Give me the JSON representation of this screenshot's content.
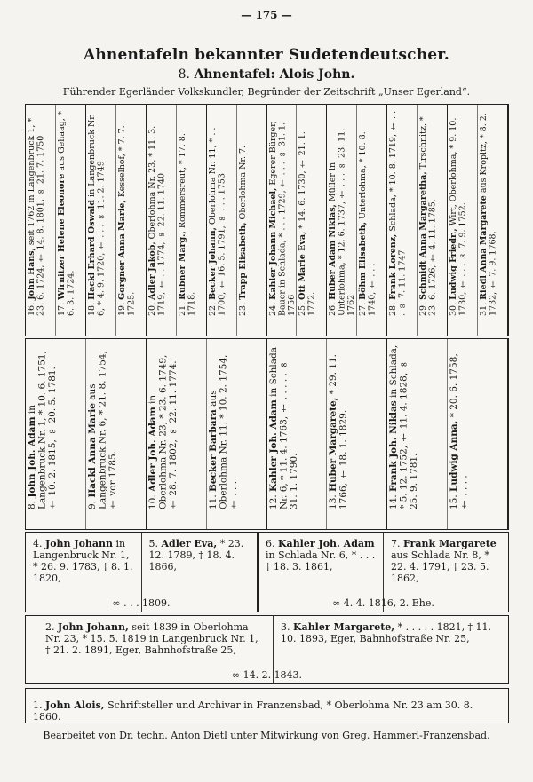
{
  "page_number": "— 175 —",
  "title": "Ahnentafeln bekannter Sudetendeutscher.",
  "subtitle": {
    "number": "8.",
    "label": "Ahnentafel: Alois John."
  },
  "description": "Führender Egerländer Volkskundler, Begründer der Zeitschrift „Unser Egerland“.",
  "generation_5": [
    {
      "num": "16.",
      "name": "John Hans,",
      "text": " seit 1762 in Langenbruck 1, * 23. 6. 1724, † 14. 8. 1801, ∞ 21. 7. 1750"
    },
    {
      "num": "17.",
      "name": "Wirnitzer Helene Eleonore",
      "text": " aus Gehaag, * 6. 3. 1724."
    },
    {
      "num": "18.",
      "name": "Hackl Erhard Oswald",
      "text": " in Langenbruck Nr. 6, * 4. 9. 1720, † . . . ∞ 11. 2. 1749"
    },
    {
      "num": "19.",
      "name": "Gorgner Anna Marie,",
      "text": " Kesselhof, * 7. 7. 1725."
    },
    {
      "num": "20.",
      "name": "Adler Jakob,",
      "text": " Oberlohma Nr. 23, * 11. 3. 1719, † . . 1774, ∞ 22. 11. 1740"
    },
    {
      "num": "21.",
      "name": "Rubner Marg.,",
      "text": " Rommersreut, * 17. 8. 1718."
    },
    {
      "num": "22.",
      "name": "Becker Johann,",
      "text": " Oberlohma Nr. 11, * . . 1700, † 16. 5. 1791, ∞ . . . 1753"
    },
    {
      "num": "23.",
      "name": "Trapp Elisabeth,",
      "text": " Oberlohma Nr. 7."
    },
    {
      "num": "24.",
      "name": "Kahler Johann Michael,",
      "text": " Egerer Bürger, Bauer in Schlada, * . . . 1729, † . . . ∞ 31. 1. 1756"
    },
    {
      "num": "25.",
      "name": "Ott Marie Eva,",
      "text": " * 14. 6. 1730, † 21. 1. 1772."
    },
    {
      "num": "26.",
      "name": "Huber Adam Niklas,",
      "text": " Müller in Unterlohma, * 12. 6. 1737, † . . . ∞ 23. 11. 1762"
    },
    {
      "num": "27.",
      "name": "Böhm Elisabeth,",
      "text": " Unterlohma, * 10. 8. 1740, † . . ."
    },
    {
      "num": "28.",
      "name": "Frank Lorenz,",
      "text": " Schlada, * 10. 8. 1719, † . . . ∞ 7. 11. 1747"
    },
    {
      "num": "29.",
      "name": "Schmidt Anna Margaretha,",
      "text": " Tirschnitz, * 23. 6. 1726, † 4. 11. 1785."
    },
    {
      "num": "30.",
      "name": "Ludwig Friedr.,",
      "text": " Wirt, Oberlohma, * 9. 10. 1730, † . . . ∞ 7. 9. 1752."
    },
    {
      "num": "31.",
      "name": "Riedl Anna Margarete",
      "text": " aus Kropitz, * 8. 2. 1732, † 7. 9. 1768."
    }
  ],
  "generation_4": [
    {
      "num": "8.",
      "name": "John Joh. Adam",
      "text": " in Langenbruck Nr. 1, * 10. 6. 1751, † 10. 2. 1815, ∞ 20. 5. 1781."
    },
    {
      "num": "9.",
      "name": "Hackl Anna Marie",
      "text": " aus Langenbruck Nr. 6, * 21. 8. 1754, † vor 1785."
    },
    {
      "num": "10.",
      "name": "Adler Joh. Adam",
      "text": " in Oberlohma Nr. 23, * 23. 6. 1749, † 28. 7. 1802, ∞ 22. 11. 1774."
    },
    {
      "num": "11.",
      "name": "Becker Barbara",
      "text": " aus Oberlohma Nr. 11, * 10. 2. 1754, † . . ."
    },
    {
      "num": "12.",
      "name": "Kahler Joh. Adam",
      "text": " in Schlada Nr. 6, * 11. 4. 1763, † . . . . . ∞ 31. 1. 1790."
    },
    {
      "num": "13.",
      "name": "Huber Margarete,",
      "text": " * 29. 11. 1766, † 18. 1. 1829."
    },
    {
      "num": "14.",
      "name": "Frank Joh. Niklas",
      "text": " in Schlada, * 5. 12. 1752, † 11. 4. 1828, ∞ 25. 9. 1781."
    },
    {
      "num": "15.",
      "name": "Ludwig Anna,",
      "text": " * 20. 6. 1758, † . . . ."
    }
  ],
  "generation_3": {
    "boxes": [
      {
        "persons": [
          {
            "num": "4.",
            "name": "John Johann",
            "text": " in Langenbruck Nr. 1, * 26. 9. 1783, † 8. 1. 1820,"
          },
          {
            "num": "5.",
            "name": "Adler Eva,",
            "text": " * 23. 12. 1789, † 18. 4. 1866,"
          }
        ],
        "marriage": "∞ . . . 1809."
      },
      {
        "persons": [
          {
            "num": "6.",
            "name": "Kahler Joh. Adam",
            "text": " in Schlada Nr. 6, * . . . † 18. 3. 1861,"
          },
          {
            "num": "7.",
            "name": "Frank Margarete",
            "text": " aus Schlada Nr. 8, * 22. 4. 1791, † 23. 5. 1862,"
          }
        ],
        "marriage": "∞ 4. 4. 1816, 2. Ehe."
      }
    ]
  },
  "generation_2": {
    "persons": [
      {
        "num": "2.",
        "name": "John Johann,",
        "text": " seit 1839 in Oberlohma Nr. 23, * 15. 5. 1819 in Langenbruck Nr. 1, † 21. 2. 1891, Eger, Bahnhofstraße 25,"
      },
      {
        "num": "3.",
        "name": "Kahler Margarete,",
        "text": " * . . . . . 1821, † 11. 10. 1893, Eger, Bahnhofstraße Nr. 25,"
      }
    ],
    "marriage": "∞ 14. 2. 1843."
  },
  "generation_1": {
    "num": "1.",
    "name": "John Alois,",
    "text": " Schriftsteller und Archivar in Franzensbad, * Oberlohma Nr. 23 am 30. 8. 1860."
  },
  "footer": "Bearbeitet von Dr. techn. Anton Dietl unter Mitwirkung von Greg. Hammerl-Franzensbad."
}
